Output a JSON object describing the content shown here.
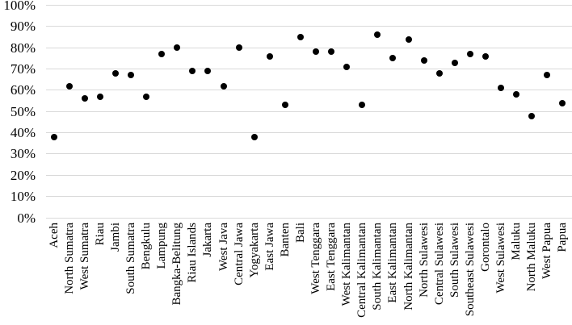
{
  "chart_data": {
    "type": "scatter",
    "title": "",
    "xlabel": "",
    "ylabel": "",
    "ylim": [
      0,
      100
    ],
    "ytick_step": 10,
    "ytick_labels": [
      "0%",
      "10%",
      "20%",
      "30%",
      "40%",
      "50%",
      "60%",
      "70%",
      "80%",
      "90%",
      "100%"
    ],
    "grid": true,
    "legend_position": "none",
    "dot_color": "#000000",
    "grid_color": "#d9d9d9",
    "background_color": "#ffffff",
    "categories": [
      "Aceh",
      "North Sumatra",
      "West Sumatra",
      "Riau",
      "Jambi",
      "South Sumatra",
      "Bengkulu",
      "Lampung",
      "Bangka-Belitung",
      "Riau Islands",
      "Jakarta",
      "West Java",
      "Central Jawa",
      "Yogyakarta",
      "East Jawa",
      "Banten",
      "Bali",
      "West Tenggara",
      "East Tenggara",
      "West Kalimantan",
      "Central Kalimantan",
      "South Kalimantan",
      "East Kalimantan",
      "North Kalimantan",
      "North Sulawesi",
      "Central Sulawesi",
      "South Sulawesi",
      "Southeast Sulawesi",
      "Gorontalo",
      "West Sulawesi",
      "Maluku",
      "North Maluku",
      "West Papua",
      "Papua"
    ],
    "values": [
      38,
      62,
      56,
      57,
      68,
      67,
      57,
      77,
      80,
      69,
      69,
      62,
      80,
      38,
      76,
      53,
      85,
      78,
      78,
      71,
      53,
      86,
      75,
      84,
      74,
      68,
      73,
      77,
      76,
      61,
      58,
      48,
      67,
      54
    ]
  }
}
